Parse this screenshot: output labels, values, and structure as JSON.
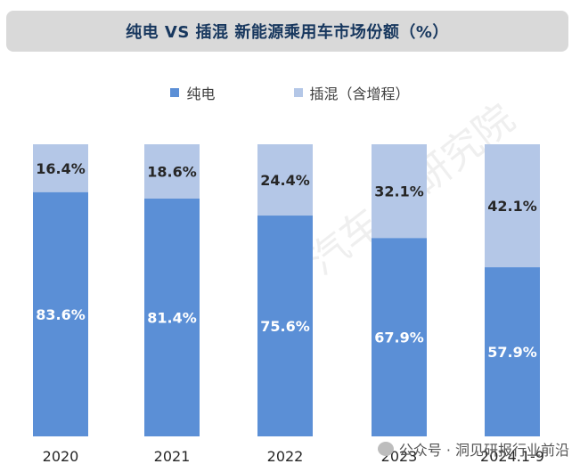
{
  "title": "纯电 VS 插混 新能源乘用车市场份额（%）",
  "colors": {
    "bev": "#5b8fd6",
    "phev": "#b4c7e7",
    "title_bg": "#d9d9d9",
    "title_text": "#17375e"
  },
  "watermark_text": "公众号 · 洞见研报行业前沿",
  "diag_watermark_text": "汽车 家研究院",
  "chart_data": {
    "type": "bar",
    "stacked": true,
    "title": "纯电 VS 插混 新能源乘用车市场份额（%）",
    "categories": [
      "2020",
      "2021",
      "2022",
      "2023",
      "2024.1-9"
    ],
    "series": [
      {
        "name": "纯电",
        "values": [
          83.6,
          81.4,
          75.6,
          67.9,
          57.9
        ],
        "labels": [
          "83.6%",
          "81.4%",
          "75.6%",
          "67.9%",
          "57.9%"
        ]
      },
      {
        "name": "插混（含增程）",
        "values": [
          16.4,
          18.6,
          24.4,
          32.1,
          42.1
        ],
        "labels": [
          "16.4%",
          "18.6%",
          "24.4%",
          "32.1%",
          "42.1%"
        ]
      }
    ],
    "ylim": [
      0,
      100
    ],
    "legend_position": "top",
    "grid": false
  }
}
